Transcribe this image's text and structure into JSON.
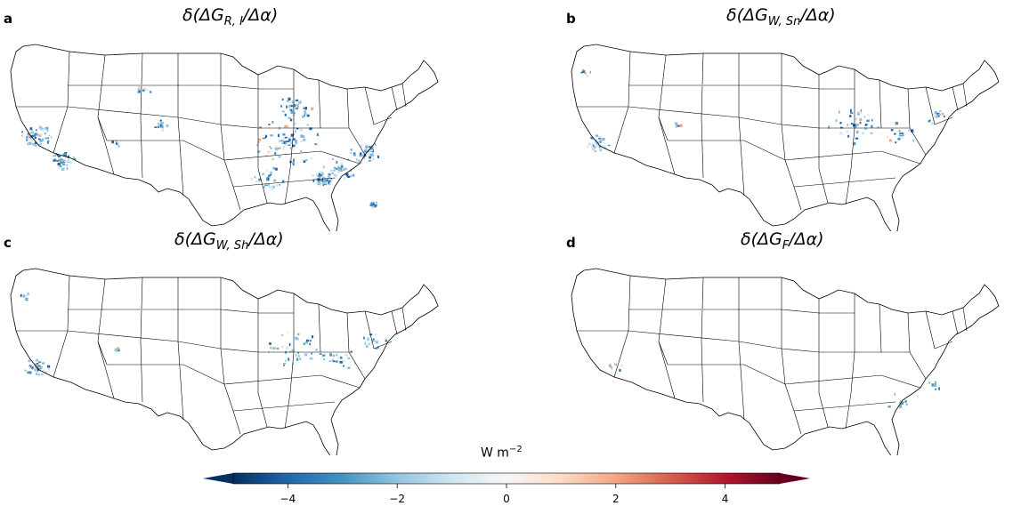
{
  "panels": [
    {
      "letter": "a",
      "title_main": "δ(ΔG",
      "title_sub": "R, I",
      "title_tail": "/Δα)",
      "intensity": "high"
    },
    {
      "letter": "b",
      "title_main": "δ(ΔG",
      "title_sub": "W, Sn",
      "title_tail": "/Δα)",
      "intensity": "low"
    },
    {
      "letter": "c",
      "title_main": "δ(ΔG",
      "title_sub": "W, Sh",
      "title_tail": "/Δα)",
      "intensity": "low"
    },
    {
      "letter": "d",
      "title_main": "δ(ΔG",
      "title_sub": "F",
      "title_tail": "/Δα)",
      "intensity": "minimal"
    }
  ],
  "colorbar": {
    "label_main": "W m",
    "label_sup": "−2",
    "min": -5.5,
    "max": 5.5,
    "ticks": [
      {
        "value": -4,
        "label": "−4"
      },
      {
        "value": -2,
        "label": "−2"
      },
      {
        "value": 0,
        "label": "0"
      },
      {
        "value": 2,
        "label": "2"
      },
      {
        "value": 4,
        "label": "4"
      }
    ],
    "colormap": [
      "#053061",
      "#2166ac",
      "#4393c3",
      "#92c5de",
      "#d1e5f0",
      "#f7f7f7",
      "#fddbc7",
      "#f4a582",
      "#d6604d",
      "#b2182b",
      "#67001f"
    ]
  }
}
